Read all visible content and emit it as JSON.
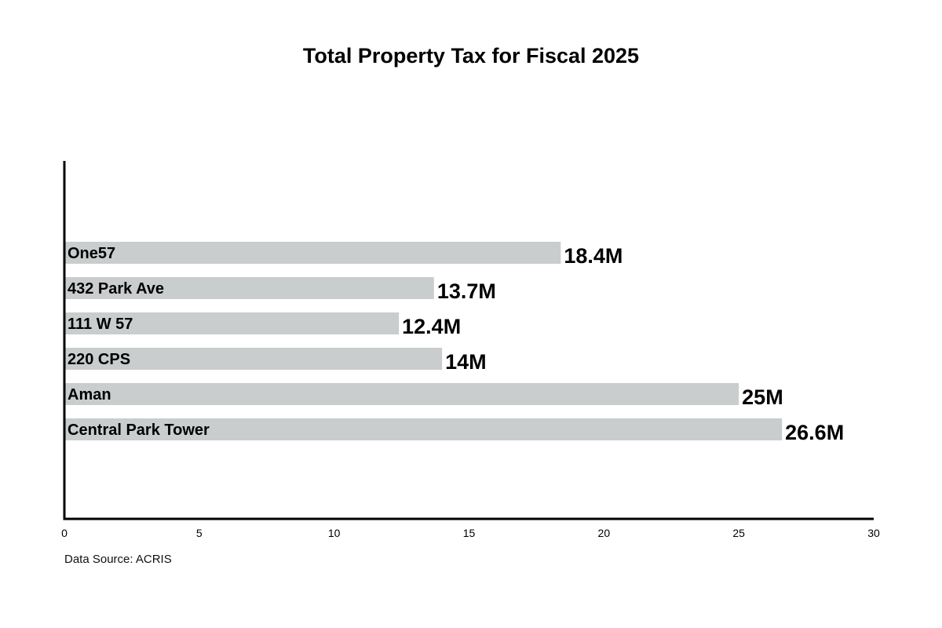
{
  "chart_data": {
    "type": "bar",
    "orientation": "horizontal",
    "title": "Total Property Tax for Fiscal 2025",
    "categories": [
      "One57",
      "432 Park Ave",
      "111 W 57",
      "220 CPS",
      "Aman",
      "Central Park Tower"
    ],
    "values": [
      18.4,
      13.7,
      12.4,
      14,
      25,
      26.6
    ],
    "data_labels": [
      "18.4M",
      "13.7M",
      "12.4M",
      "14M",
      "25M",
      "26.6M"
    ],
    "xlim": [
      0,
      30
    ],
    "x_ticks": [
      "0",
      "5",
      "10",
      "15",
      "20",
      "25",
      "30"
    ],
    "grid": false,
    "bar_color": "#c9cdce",
    "axis_color": "#000000",
    "source": "Data Source: ACRIS"
  }
}
